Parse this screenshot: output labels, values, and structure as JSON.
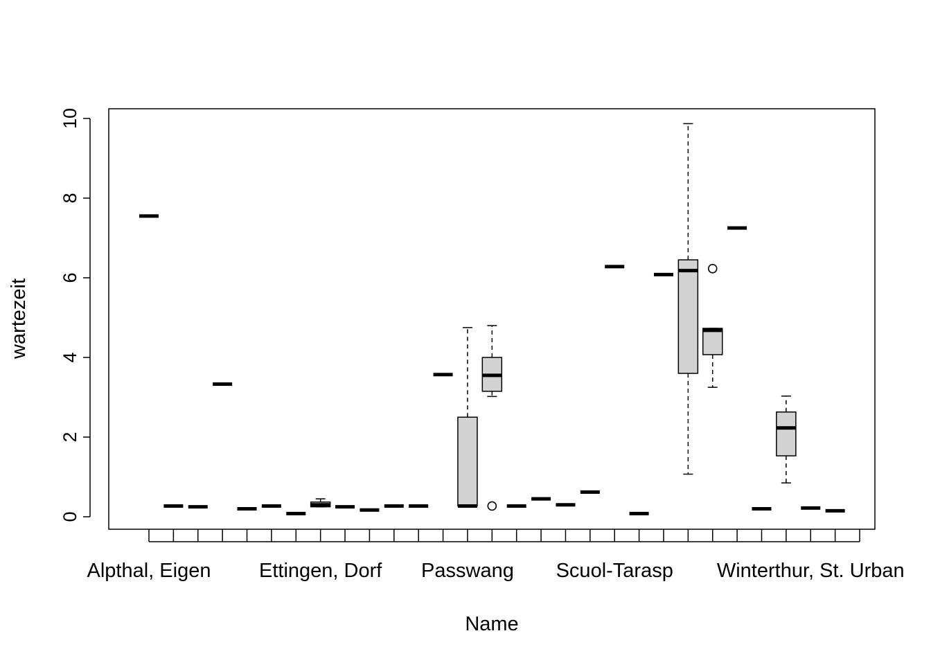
{
  "chart_data": {
    "type": "boxplot",
    "title": "",
    "xlabel": "Name",
    "ylabel": "wartezeit",
    "ylim": [
      -0.25,
      10.3
    ],
    "y_ticks": [
      0,
      2,
      4,
      6,
      8,
      10
    ],
    "x_tick_labels": [
      {
        "index": 1,
        "label": "Alpthal, Eigen"
      },
      {
        "index": 8,
        "label": "Ettingen, Dorf"
      },
      {
        "index": 14,
        "label": "Passwang"
      },
      {
        "index": 20,
        "label": "Scuol-Tarasp"
      },
      {
        "index": 28,
        "label": "Winterthur, St. Urban"
      }
    ],
    "grid": false,
    "legend": "none",
    "box_fill": "#d3d3d3",
    "n_groups": 30,
    "boxes": [
      {
        "index": 1,
        "min": 7.55,
        "q1": 7.55,
        "median": 7.55,
        "q3": 7.55,
        "max": 7.55,
        "outliers": []
      },
      {
        "index": 2,
        "min": 0.27,
        "q1": 0.27,
        "median": 0.27,
        "q3": 0.27,
        "max": 0.27,
        "outliers": []
      },
      {
        "index": 3,
        "min": 0.25,
        "q1": 0.25,
        "median": 0.25,
        "q3": 0.25,
        "max": 0.25,
        "outliers": []
      },
      {
        "index": 4,
        "min": 3.33,
        "q1": 3.33,
        "median": 3.33,
        "q3": 3.33,
        "max": 3.33,
        "outliers": []
      },
      {
        "index": 5,
        "min": 0.2,
        "q1": 0.2,
        "median": 0.2,
        "q3": 0.2,
        "max": 0.2,
        "outliers": []
      },
      {
        "index": 6,
        "min": 0.27,
        "q1": 0.27,
        "median": 0.27,
        "q3": 0.27,
        "max": 0.27,
        "outliers": []
      },
      {
        "index": 7,
        "min": 0.08,
        "q1": 0.08,
        "median": 0.08,
        "q3": 0.08,
        "max": 0.08,
        "outliers": []
      },
      {
        "index": 8,
        "min": 0.25,
        "q1": 0.25,
        "median": 0.3,
        "q3": 0.37,
        "max": 0.45,
        "outliers": []
      },
      {
        "index": 9,
        "min": 0.25,
        "q1": 0.25,
        "median": 0.25,
        "q3": 0.25,
        "max": 0.25,
        "outliers": []
      },
      {
        "index": 10,
        "min": 0.17,
        "q1": 0.17,
        "median": 0.17,
        "q3": 0.17,
        "max": 0.17,
        "outliers": []
      },
      {
        "index": 11,
        "min": 0.27,
        "q1": 0.27,
        "median": 0.27,
        "q3": 0.27,
        "max": 0.27,
        "outliers": []
      },
      {
        "index": 12,
        "min": 0.27,
        "q1": 0.27,
        "median": 0.27,
        "q3": 0.27,
        "max": 0.27,
        "outliers": []
      },
      {
        "index": 13,
        "min": 3.57,
        "q1": 3.57,
        "median": 3.57,
        "q3": 3.57,
        "max": 3.57,
        "outliers": []
      },
      {
        "index": 14,
        "min": 0.27,
        "q1": 0.27,
        "median": 0.27,
        "q3": 2.5,
        "max": 4.75,
        "outliers": []
      },
      {
        "index": 15,
        "min": 3.02,
        "q1": 3.15,
        "median": 3.55,
        "q3": 4.0,
        "max": 4.8,
        "outliers": [
          0.27
        ]
      },
      {
        "index": 16,
        "min": 0.27,
        "q1": 0.27,
        "median": 0.27,
        "q3": 0.27,
        "max": 0.27,
        "outliers": []
      },
      {
        "index": 17,
        "min": 0.45,
        "q1": 0.45,
        "median": 0.45,
        "q3": 0.45,
        "max": 0.45,
        "outliers": []
      },
      {
        "index": 18,
        "min": 0.3,
        "q1": 0.3,
        "median": 0.3,
        "q3": 0.3,
        "max": 0.3,
        "outliers": []
      },
      {
        "index": 19,
        "min": 0.62,
        "q1": 0.62,
        "median": 0.62,
        "q3": 0.62,
        "max": 0.62,
        "outliers": []
      },
      {
        "index": 20,
        "min": 6.28,
        "q1": 6.28,
        "median": 6.28,
        "q3": 6.28,
        "max": 6.28,
        "outliers": []
      },
      {
        "index": 21,
        "min": 0.08,
        "q1": 0.08,
        "median": 0.08,
        "q3": 0.08,
        "max": 0.08,
        "outliers": []
      },
      {
        "index": 22,
        "min": 6.08,
        "q1": 6.08,
        "median": 6.08,
        "q3": 6.08,
        "max": 6.08,
        "outliers": []
      },
      {
        "index": 23,
        "min": 1.07,
        "q1": 3.6,
        "median": 6.18,
        "q3": 6.45,
        "max": 9.87,
        "outliers": []
      },
      {
        "index": 24,
        "min": 3.25,
        "q1": 4.07,
        "median": 4.68,
        "q3": 4.73,
        "max": 4.73,
        "outliers": [
          6.23
        ]
      },
      {
        "index": 25,
        "min": 7.25,
        "q1": 7.25,
        "median": 7.25,
        "q3": 7.25,
        "max": 7.25,
        "outliers": []
      },
      {
        "index": 26,
        "min": 0.2,
        "q1": 0.2,
        "median": 0.2,
        "q3": 0.2,
        "max": 0.2,
        "outliers": []
      },
      {
        "index": 27,
        "min": 0.85,
        "q1": 1.53,
        "median": 2.23,
        "q3": 2.63,
        "max": 3.03,
        "outliers": []
      },
      {
        "index": 28,
        "min": 0.22,
        "q1": 0.22,
        "median": 0.22,
        "q3": 0.22,
        "max": 0.22,
        "outliers": []
      },
      {
        "index": 29,
        "min": 0.15,
        "q1": 0.15,
        "median": 0.15,
        "q3": 0.15,
        "max": 0.15,
        "outliers": []
      }
    ]
  }
}
